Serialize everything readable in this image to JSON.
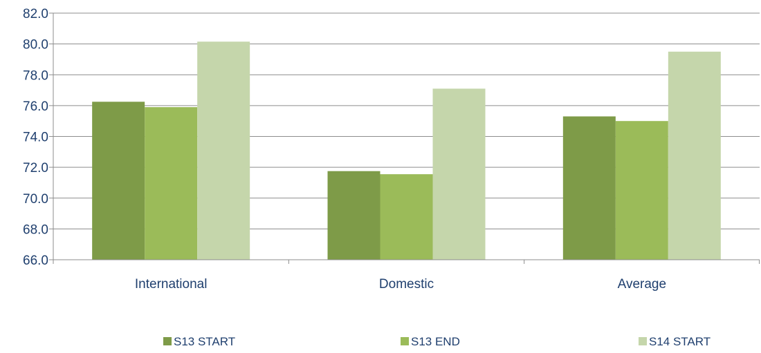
{
  "chart_data": {
    "type": "bar",
    "title": "",
    "xlabel": "",
    "ylabel": "",
    "categories": [
      "International",
      "Domestic",
      "Average"
    ],
    "series": [
      {
        "name": "S13 START",
        "color": "#7e9b48",
        "values": [
          76.25,
          71.75,
          75.3
        ]
      },
      {
        "name": "S13 END",
        "color": "#9bbb59",
        "values": [
          75.9,
          71.55,
          75.0
        ]
      },
      {
        "name": "S14 START",
        "color": "#c5d6ab",
        "values": [
          80.15,
          77.1,
          79.5
        ]
      }
    ],
    "ylim": [
      66.0,
      82.0
    ],
    "yticks": [
      "66.0",
      "68.0",
      "70.0",
      "72.0",
      "74.0",
      "76.0",
      "78.0",
      "80.0",
      "82.0"
    ],
    "grid": true,
    "legend_position": "bottom"
  }
}
